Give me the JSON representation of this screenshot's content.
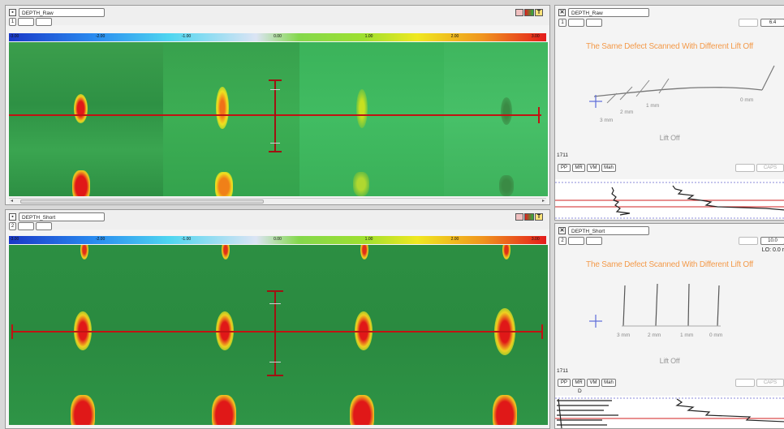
{
  "top_left": {
    "tab_label": "DEPTH_Raw",
    "channel_number": "1",
    "colorbar_ticks": [
      "-3.00",
      "-2.00",
      "-1.00",
      "0.00",
      "1.00",
      "2.00",
      "3.00"
    ]
  },
  "bottom_left": {
    "tab_label": "DEPTH_Short",
    "channel_number": "2",
    "colorbar_ticks": [
      "-3.00",
      "-2.00",
      "-1.00",
      "0.00",
      "1.00",
      "2.00",
      "3.00"
    ]
  },
  "top_right": {
    "tab_label": "DEPTH_Raw",
    "channel_number": "1",
    "corner_value": "6.4",
    "caption": "The Same Defect Scanned With Different Lift Off",
    "distance_labels": [
      "3 mm",
      "2 mm",
      "1 mm",
      "0 mm"
    ],
    "axis_label": "Lift Off",
    "sample_number": "1711",
    "buttons": [
      "PP",
      "MR",
      "VM",
      "Mah"
    ],
    "disabled_buttons": [
      "",
      "CAPS"
    ]
  },
  "bottom_right": {
    "tab_label": "DEPTH_Short",
    "channel_number": "2",
    "corner_value": "10.0",
    "lo_readout": "LO: 0.0 r",
    "caption": "The Same Defect Scanned With Different Lift Off",
    "distance_labels": [
      "3 mm",
      "2 mm",
      "1 mm",
      "0 mm"
    ],
    "axis_label": "Lift Off",
    "sample_number": "1711",
    "buttons": [
      "PP",
      "MR",
      "VM",
      "Mah"
    ],
    "disabled_buttons": [
      "",
      "CAPS"
    ],
    "trace_marker": "D"
  },
  "icons": {
    "window": "window-icon",
    "close": "close-icon",
    "palette": "palette-icon",
    "cursor": "crosshair-icon"
  }
}
